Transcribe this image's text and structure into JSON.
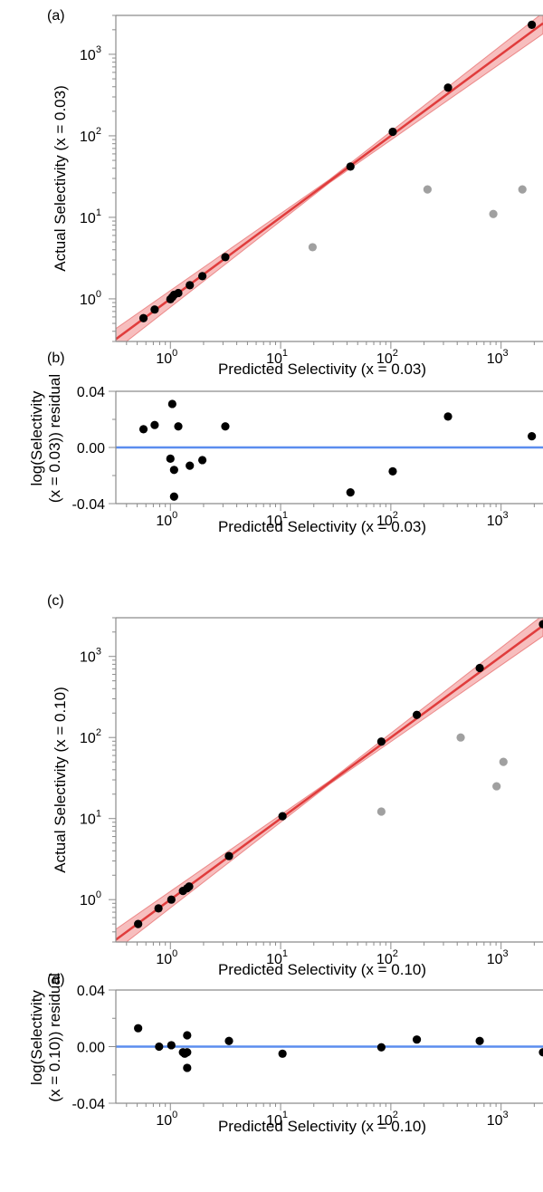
{
  "chart_data": [
    {
      "panel": "(a)",
      "type": "scatter",
      "xlabel": "Predicted Selectivity (x = 0.03)",
      "ylabel": "Actual Selectivity (x = 0.03)",
      "xscale": "log",
      "yscale": "log",
      "xlim": [
        0.32,
        2400
      ],
      "ylim": [
        0.3,
        3000
      ],
      "xtick_labels": [
        "10^0",
        "10^1",
        "10^2",
        "10^3"
      ],
      "ytick_labels": [
        "10^0",
        "10^1",
        "10^2",
        "10^3"
      ],
      "fit_line": {
        "x": [
          0.32,
          2400
        ],
        "y": [
          0.32,
          2400
        ],
        "color": "#e03c3c",
        "band_color": "#f4a3a3"
      },
      "series": [
        {
          "role": "included",
          "color": "#000000",
          "x": [
            0.57,
            0.72,
            1.0,
            1.04,
            1.08,
            1.18,
            1.5,
            1.95,
            3.15,
            43,
            104,
            330,
            1900
          ],
          "y": [
            0.58,
            0.74,
            0.99,
            1.05,
            1.12,
            1.18,
            1.47,
            1.9,
            3.25,
            42,
            112,
            390,
            2300
          ]
        },
        {
          "role": "excluded",
          "color": "#a0a0a0",
          "x": [
            19.5,
            215,
            850,
            1560
          ],
          "y": [
            4.3,
            22,
            11,
            22
          ]
        }
      ]
    },
    {
      "panel": "(b)",
      "type": "scatter",
      "xlabel": "Predicted Selectivity (x = 0.03)",
      "ylabel": "log(Selectivity (x = 0.03)) residual",
      "xscale": "log",
      "xlim": [
        0.32,
        2400
      ],
      "ylim": [
        -0.04,
        0.04
      ],
      "ytick_labels": [
        "-0.04",
        "0.00",
        "0.04"
      ],
      "xtick_labels": [
        "10^0",
        "10^1",
        "10^2",
        "10^3"
      ],
      "zero_line_color": "#5b8def",
      "series": [
        {
          "color": "#000000",
          "x": [
            0.57,
            0.72,
            1.0,
            1.04,
            1.08,
            1.08,
            1.18,
            1.5,
            1.95,
            3.15,
            43,
            104,
            330,
            1900
          ],
          "y": [
            0.013,
            0.016,
            -0.008,
            0.031,
            -0.016,
            -0.035,
            0.015,
            -0.013,
            -0.009,
            0.015,
            -0.032,
            -0.017,
            0.022,
            0.008
          ]
        }
      ]
    },
    {
      "panel": "(c)",
      "type": "scatter",
      "xlabel": "Predicted Selectivity (x = 0.10)",
      "ylabel": "Actual Selectivity (x = 0.10)",
      "xscale": "log",
      "yscale": "log",
      "xlim": [
        0.32,
        2400
      ],
      "ylim": [
        0.3,
        3000
      ],
      "xtick_labels": [
        "10^0",
        "10^1",
        "10^2",
        "10^3"
      ],
      "ytick_labels": [
        "10^0",
        "10^1",
        "10^2",
        "10^3"
      ],
      "fit_line": {
        "x": [
          0.32,
          2400
        ],
        "y": [
          0.32,
          2400
        ],
        "color": "#e03c3c",
        "band_color": "#f4a3a3"
      },
      "series": [
        {
          "role": "included",
          "color": "#000000",
          "x": [
            0.51,
            0.78,
            1.02,
            1.3,
            1.42,
            1.48,
            3.4,
            10.4,
            82,
            172,
            640,
            2400
          ],
          "y": [
            0.5,
            0.78,
            1.0,
            1.28,
            1.38,
            1.45,
            3.45,
            10.7,
            89,
            190,
            720,
            2500
          ]
        },
        {
          "role": "excluded",
          "color": "#a0a0a0",
          "x": [
            82,
            430,
            910,
            1050
          ],
          "y": [
            12.2,
            100,
            25,
            50
          ]
        }
      ]
    },
    {
      "panel": "(d)",
      "type": "scatter",
      "xlabel": "Predicted Selectivity (x = 0.10)",
      "ylabel": "log(Selectivity (x = 0.10)) residual",
      "xscale": "log",
      "xlim": [
        0.32,
        2400
      ],
      "ylim": [
        -0.04,
        0.04
      ],
      "ytick_labels": [
        "-0.04",
        "0.00",
        "0.04"
      ],
      "xtick_labels": [
        "10^0",
        "10^1",
        "10^2",
        "10^3"
      ],
      "zero_line_color": "#5b8def",
      "series": [
        {
          "color": "#000000",
          "x": [
            0.51,
            0.79,
            1.02,
            1.3,
            1.35,
            1.42,
            1.42,
            1.42,
            3.4,
            10.4,
            82,
            172,
            640,
            2400
          ],
          "y": [
            0.013,
            0.0,
            0.001,
            -0.004,
            -0.005,
            0.008,
            -0.004,
            -0.015,
            0.004,
            -0.005,
            -0.0005,
            0.005,
            0.004,
            -0.004
          ]
        }
      ]
    }
  ]
}
